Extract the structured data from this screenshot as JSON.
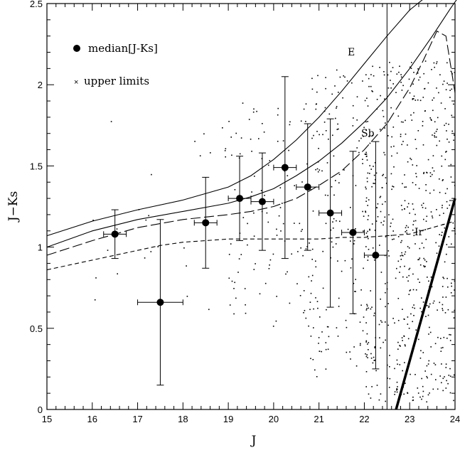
{
  "chart_data": {
    "type": "scatter",
    "xlabel": "J",
    "ylabel": "J−Ks",
    "xlim": [
      15,
      24
    ],
    "ylim": [
      0,
      2.5
    ],
    "x_ticks": [
      "15",
      "16",
      "17",
      "18",
      "19",
      "20",
      "21",
      "22",
      "23",
      "24"
    ],
    "y_ticks": [
      "0",
      "0.5",
      "1",
      "1.5",
      "2",
      "2.5"
    ],
    "grid": false,
    "legend": {
      "placement": "top-left",
      "entries": [
        {
          "label": "median[J-Ks]",
          "marker": "filled-circle"
        },
        {
          "label": "upper limits",
          "marker": "cross"
        }
      ]
    },
    "medians": [
      {
        "x": 16.5,
        "y": 1.08,
        "xerr": 0.25,
        "ylo": 0.93,
        "yhi": 1.23
      },
      {
        "x": 17.5,
        "y": 0.66,
        "xerr": 0.5,
        "ylo": 0.15,
        "yhi": 1.17
      },
      {
        "x": 18.5,
        "y": 1.15,
        "xerr": 0.25,
        "ylo": 0.87,
        "yhi": 1.43
      },
      {
        "x": 19.25,
        "y": 1.3,
        "xerr": 0.25,
        "ylo": 1.04,
        "yhi": 1.56
      },
      {
        "x": 19.75,
        "y": 1.28,
        "xerr": 0.25,
        "ylo": 0.98,
        "yhi": 1.58
      },
      {
        "x": 20.25,
        "y": 1.49,
        "xerr": 0.25,
        "ylo": 0.93,
        "yhi": 2.05
      },
      {
        "x": 20.75,
        "y": 1.37,
        "xerr": 0.25,
        "ylo": 0.98,
        "yhi": 1.76
      },
      {
        "x": 21.25,
        "y": 1.21,
        "xerr": 0.25,
        "ylo": 0.63,
        "yhi": 1.79
      },
      {
        "x": 21.75,
        "y": 1.09,
        "xerr": 0.25,
        "ylo": 0.59,
        "yhi": 1.59
      },
      {
        "x": 22.25,
        "y": 0.95,
        "xerr": 0.25,
        "ylo": 0.25,
        "yhi": 1.65
      }
    ],
    "upper_limit_error_bar": {
      "x": 22.5,
      "ylo": 0,
      "yhi": 2.5
    },
    "limit_line": {
      "x": [
        22.7,
        24.0
      ],
      "y": [
        0.0,
        1.3
      ]
    },
    "curves": [
      {
        "name": "E",
        "style": "solid",
        "x": [
          15,
          16,
          17,
          18,
          19,
          19.5,
          20,
          20.5,
          21,
          21.5,
          22,
          22.5,
          23,
          23.4
        ],
        "y": [
          1.07,
          1.16,
          1.23,
          1.29,
          1.37,
          1.44,
          1.54,
          1.66,
          1.8,
          1.96,
          2.13,
          2.3,
          2.46,
          2.55
        ]
      },
      {
        "name": "",
        "style": "solid",
        "x": [
          15,
          16,
          17,
          18,
          19,
          19.5,
          20,
          20.5,
          21,
          21.5,
          22,
          22.5,
          23,
          23.5,
          23.9,
          24.1
        ],
        "y": [
          1.0,
          1.1,
          1.17,
          1.22,
          1.27,
          1.31,
          1.36,
          1.44,
          1.53,
          1.64,
          1.77,
          1.92,
          2.1,
          2.3,
          2.47,
          2.55
        ]
      },
      {
        "name": "Sb",
        "style": "long-dash",
        "x": [
          15,
          16,
          17,
          18,
          19,
          19.5,
          20,
          20.5,
          21,
          21.5,
          22,
          22.5,
          23,
          23.3,
          23.6,
          23.8,
          24.0
        ],
        "y": [
          0.95,
          1.04,
          1.12,
          1.17,
          1.2,
          1.22,
          1.25,
          1.3,
          1.38,
          1.47,
          1.6,
          1.76,
          1.98,
          2.15,
          2.33,
          2.3,
          1.95
        ]
      },
      {
        "name": "Ir",
        "style": "short-dash",
        "x": [
          15,
          15.5,
          16,
          16.5,
          17,
          17.5,
          18,
          18.5,
          19,
          19.5,
          20,
          20.5,
          21,
          21.5,
          22,
          22.5,
          23,
          23.5,
          24
        ],
        "y": [
          0.86,
          0.89,
          0.92,
          0.95,
          0.98,
          1.01,
          1.03,
          1.04,
          1.05,
          1.05,
          1.05,
          1.05,
          1.05,
          1.06,
          1.06,
          1.07,
          1.08,
          1.12,
          1.16
        ]
      }
    ]
  }
}
